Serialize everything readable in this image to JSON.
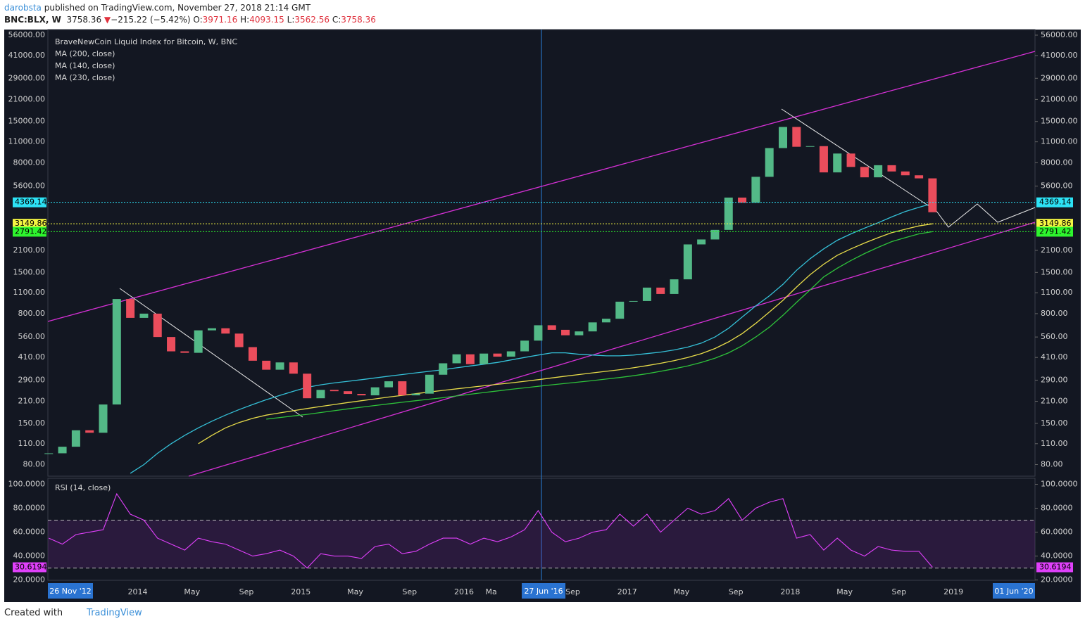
{
  "header": {
    "user": "darobsta",
    "published": "published on TradingView.com, November 27, 2018 21:14 GMT",
    "symbol": "BNC:BLX, W",
    "last": "3758.36",
    "change": "−215.22 (−5.42%)",
    "o_label": "O:",
    "open": "3971.16",
    "h_label": "H:",
    "high": "4093.15",
    "l_label": "L:",
    "low": "3562.56",
    "c_label": "C:",
    "close": "3758.36"
  },
  "footer": {
    "created": "Created with",
    "brand": "TradingView"
  },
  "chart_data": {
    "type": "candlestick",
    "title": "BraveNewCoin Liquid Index for Bitcoin, W, BNC",
    "log_scale": true,
    "up_color": "#53b987",
    "down_color": "#eb4d5c",
    "x": [
      "2013-06",
      "2013-07",
      "2013-08",
      "2013-09",
      "2013-10",
      "2013-11",
      "2013-12",
      "2014-01",
      "2014-02",
      "2014-03",
      "2014-04",
      "2014-05",
      "2014-06",
      "2014-07",
      "2014-08",
      "2014-09",
      "2014-10",
      "2014-11",
      "2014-12",
      "2015-01",
      "2015-02",
      "2015-03",
      "2015-04",
      "2015-05",
      "2015-06",
      "2015-07",
      "2015-08",
      "2015-09",
      "2015-10",
      "2015-11",
      "2015-12",
      "2016-01",
      "2016-02",
      "2016-03",
      "2016-04",
      "2016-05",
      "2016-06",
      "2016-07",
      "2016-08",
      "2016-09",
      "2016-10",
      "2016-11",
      "2016-12",
      "2017-01",
      "2017-02",
      "2017-03",
      "2017-04",
      "2017-05",
      "2017-06",
      "2017-07",
      "2017-08",
      "2017-09",
      "2017-10",
      "2017-11",
      "2017-12",
      "2018-01",
      "2018-02",
      "2018-03",
      "2018-04",
      "2018-05",
      "2018-06",
      "2018-07",
      "2018-08",
      "2018-09",
      "2018-10",
      "2018-11"
    ],
    "close": [
      95,
      105,
      135,
      130,
      200,
      1000,
      750,
      800,
      560,
      450,
      440,
      620,
      640,
      590,
      480,
      390,
      340,
      380,
      320,
      220,
      250,
      245,
      235,
      230,
      260,
      285,
      230,
      236,
      315,
      375,
      430,
      370,
      435,
      415,
      450,
      530,
      670,
      625,
      575,
      610,
      700,
      740,
      960,
      970,
      1190,
      1080,
      1350,
      2300,
      2480,
      2870,
      4700,
      4340,
      6450,
      10000,
      13800,
      10200,
      10300,
      6900,
      9200,
      7500,
      6400,
      7700,
      7000,
      6600,
      6300,
      3758.36
    ],
    "series": [
      {
        "name": "MA (200, close)",
        "color": "#e8dc4a",
        "values": [
          null,
          null,
          null,
          null,
          null,
          null,
          null,
          null,
          null,
          null,
          null,
          110,
          125,
          140,
          152,
          162,
          170,
          176,
          182,
          188,
          194,
          200,
          206,
          212,
          218,
          224,
          230,
          236,
          242,
          248,
          254,
          260,
          266,
          272,
          278,
          285,
          292,
          300,
          308,
          316,
          324,
          332,
          340,
          350,
          362,
          375,
          390,
          410,
          435,
          470,
          520,
          590,
          690,
          820,
          980,
          1200,
          1450,
          1700,
          1950,
          2150,
          2350,
          2550,
          2750,
          2900,
          3050,
          3150
        ]
      },
      {
        "name": "MA (140, close)",
        "color": "#35c1d8",
        "values": [
          null,
          null,
          null,
          null,
          null,
          null,
          70,
          80,
          95,
          110,
          125,
          140,
          155,
          170,
          185,
          200,
          215,
          230,
          245,
          260,
          270,
          278,
          285,
          292,
          300,
          308,
          316,
          324,
          332,
          340,
          350,
          360,
          370,
          380,
          395,
          410,
          425,
          440,
          440,
          430,
          425,
          420,
          420,
          425,
          435,
          445,
          460,
          480,
          510,
          560,
          640,
          760,
          900,
          1050,
          1250,
          1550,
          1850,
          2150,
          2450,
          2700,
          2950,
          3200,
          3500,
          3800,
          4050,
          4300
        ]
      },
      {
        "name": "MA (230, close)",
        "color": "#2ec23a",
        "values": [
          null,
          null,
          null,
          null,
          null,
          null,
          null,
          null,
          null,
          null,
          null,
          null,
          null,
          null,
          null,
          null,
          160,
          164,
          168,
          172,
          177,
          182,
          187,
          192,
          197,
          202,
          207,
          212,
          217,
          222,
          228,
          234,
          240,
          246,
          252,
          258,
          264,
          270,
          276,
          282,
          288,
          295,
          302,
          310,
          320,
          332,
          345,
          360,
          380,
          405,
          440,
          490,
          560,
          650,
          780,
          950,
          1150,
          1400,
          1600,
          1800,
          2000,
          2200,
          2400,
          2550,
          2700,
          2791.42
        ]
      }
    ],
    "xlim": [
      "2013-06-13",
      "2019-07-01"
    ],
    "ylim": [
      67,
      61000
    ],
    "yticks": [
      {
        "value": 56000,
        "label": "56000.00"
      },
      {
        "value": 41000,
        "label": "41000.00"
      },
      {
        "value": 29000,
        "label": "29000.00"
      },
      {
        "value": 21000,
        "label": "21000.00"
      },
      {
        "value": 15000,
        "label": "15000.00"
      },
      {
        "value": 11000,
        "label": "11000.00"
      },
      {
        "value": 8000,
        "label": "8000.00"
      },
      {
        "value": 5600,
        "label": "5600.00"
      },
      {
        "value": 2100,
        "label": "2100.00"
      },
      {
        "value": 1500,
        "label": "1500.00"
      },
      {
        "value": 1100,
        "label": "1100.00"
      },
      {
        "value": 800,
        "label": "800.00"
      },
      {
        "value": 560,
        "label": "560.00"
      },
      {
        "value": 410,
        "label": "410.00"
      },
      {
        "value": 290,
        "label": "290.00"
      },
      {
        "value": 210,
        "label": "210.00"
      },
      {
        "value": 150,
        "label": "150.00"
      },
      {
        "value": 110,
        "label": "110.00"
      },
      {
        "value": 80,
        "label": "80.00"
      }
    ],
    "xticks": [
      {
        "value": "2014-01-01",
        "label": "2014"
      },
      {
        "value": "2014-05-01",
        "label": "May"
      },
      {
        "value": "2014-09-01",
        "label": "Sep"
      },
      {
        "value": "2015-01-01",
        "label": "2015"
      },
      {
        "value": "2015-05-01",
        "label": "May"
      },
      {
        "value": "2015-09-01",
        "label": "Sep"
      },
      {
        "value": "2016-01-01",
        "label": "2016"
      },
      {
        "value": "2016-03-01",
        "label": "Ma"
      },
      {
        "value": "2016-09-01",
        "label": "Sep"
      },
      {
        "value": "2017-01-01",
        "label": "2017"
      },
      {
        "value": "2017-05-01",
        "label": "May"
      },
      {
        "value": "2017-09-01",
        "label": "Sep"
      },
      {
        "value": "2018-01-01",
        "label": "2018"
      },
      {
        "value": "2018-05-01",
        "label": "May"
      },
      {
        "value": "2018-09-01",
        "label": "Sep"
      },
      {
        "value": "2019-01-01",
        "label": "2019"
      }
    ],
    "levels": [
      {
        "value": 4369.14,
        "color": "#2de2f5"
      },
      {
        "value": 3149.86,
        "color": "#f5f542"
      },
      {
        "value": 2791.42,
        "color": "#2ef52e"
      }
    ],
    "range_start": "26 Nov '12",
    "range_end": "01 Jun '20",
    "crosshair": {
      "date": "2016-06-27",
      "label": "27 Jun '16"
    }
  },
  "rsi": {
    "name": "RSI (14, close)",
    "color": "#e040fb",
    "ylim": [
      18,
      105
    ],
    "yticks": [
      {
        "value": 100,
        "label": "100.0000"
      },
      {
        "value": 80,
        "label": "80.0000"
      },
      {
        "value": 60,
        "label": "60.0000"
      },
      {
        "value": 40,
        "label": "40.0000"
      },
      {
        "value": 20,
        "label": "20.0000"
      }
    ],
    "bands": [
      70,
      30
    ],
    "values": [
      55,
      50,
      58,
      60,
      62,
      92,
      75,
      70,
      55,
      50,
      45,
      55,
      52,
      50,
      45,
      40,
      42,
      45,
      40,
      30,
      42,
      40,
      40,
      38,
      48,
      50,
      42,
      44,
      50,
      55,
      55,
      50,
      55,
      52,
      56,
      62,
      78,
      60,
      52,
      55,
      60,
      62,
      75,
      65,
      75,
      60,
      70,
      80,
      75,
      78,
      88,
      70,
      80,
      85,
      88,
      55,
      58,
      45,
      55,
      45,
      40,
      48,
      45,
      44,
      44,
      30.6194
    ]
  }
}
